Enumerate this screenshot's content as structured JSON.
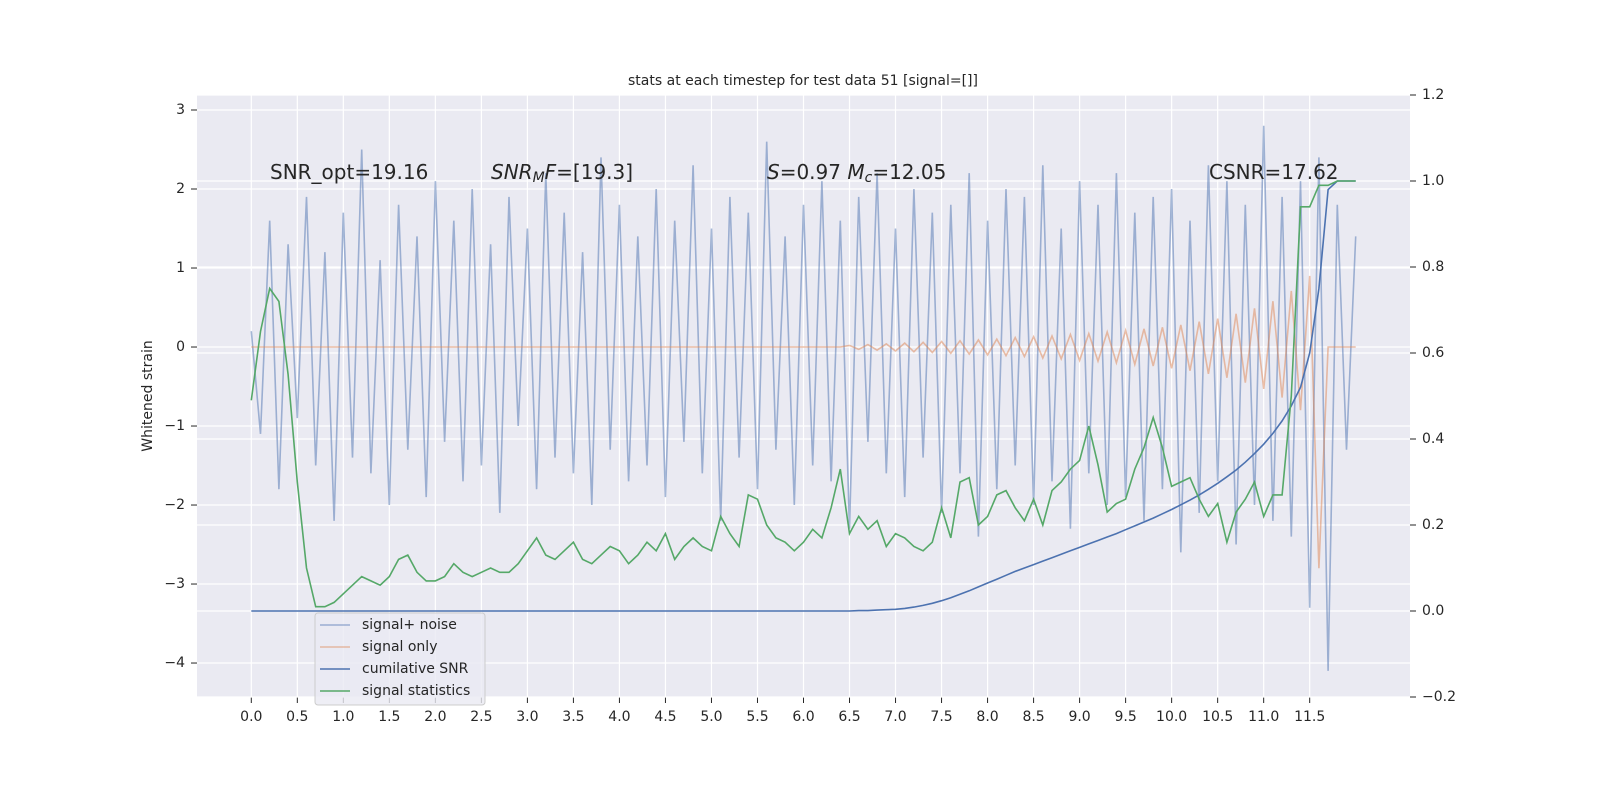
{
  "chart_data": {
    "type": "line",
    "title": "stats at each timestep for test data 51 [signal=[]]",
    "y_label": "Whitened strain",
    "annotations": [
      [
        "SNR_opt=19.16"
      ],
      [
        "SNR",
        "M",
        "F",
        "=[19.3]"
      ],
      [
        "S",
        "=0.97   ",
        "M",
        "c",
        "=12.05"
      ],
      [
        "CSNR=17.62"
      ]
    ],
    "xlim": [
      -0.59,
      12.59
    ],
    "xticks": [
      {
        "value": 0,
        "label": "0.0"
      },
      {
        "value": 0.5,
        "label": "0.5"
      },
      {
        "value": 1,
        "label": "1.0"
      },
      {
        "value": 1.5,
        "label": "1.5"
      },
      {
        "value": 2,
        "label": "2.0"
      },
      {
        "value": 2.5,
        "label": "2.5"
      },
      {
        "value": 3,
        "label": "3.0"
      },
      {
        "value": 3.5,
        "label": "3.5"
      },
      {
        "value": 4,
        "label": "4.0"
      },
      {
        "value": 4.5,
        "label": "4.5"
      },
      {
        "value": 5,
        "label": "5.0"
      },
      {
        "value": 5.5,
        "label": "5.5"
      },
      {
        "value": 6,
        "label": "6.0"
      },
      {
        "value": 6.5,
        "label": "6.5"
      },
      {
        "value": 7,
        "label": "7.0"
      },
      {
        "value": 7.5,
        "label": "7.5"
      },
      {
        "value": 8,
        "label": "8.0"
      },
      {
        "value": 8.5,
        "label": "8.5"
      },
      {
        "value": 9,
        "label": "9.0"
      },
      {
        "value": 9.5,
        "label": "9.5"
      },
      {
        "value": 10,
        "label": "10.0"
      },
      {
        "value": 10.5,
        "label": "10.5"
      },
      {
        "value": 11,
        "label": "11.0"
      },
      {
        "value": 11.5,
        "label": "11.5"
      }
    ],
    "ylim": [
      -4.43,
      3.19
    ],
    "yticks": [
      {
        "value": -4,
        "label": "−4"
      },
      {
        "value": -3,
        "label": "−3"
      },
      {
        "value": -2,
        "label": "−2"
      },
      {
        "value": -1,
        "label": "−1"
      },
      0,
      1,
      2,
      3
    ],
    "y2lim": [
      -0.2,
      1.2
    ],
    "y2ticks": [
      {
        "value": -0.2,
        "label": "−0.2"
      },
      {
        "value": 0,
        "label": "0.0"
      },
      0.2,
      0.4,
      0.6,
      0.8,
      {
        "value": 1,
        "label": "1.0"
      },
      1.2
    ],
    "grid": true,
    "legend": "lower left",
    "x": [
      0.0,
      0.1,
      0.2,
      0.3,
      0.4,
      0.5,
      0.6,
      0.7,
      0.8,
      0.9,
      1.0,
      1.1,
      1.2,
      1.3,
      1.4,
      1.5,
      1.6,
      1.7,
      1.8,
      1.9,
      2.0,
      2.1,
      2.2,
      2.3,
      2.4,
      2.5,
      2.6,
      2.7,
      2.8,
      2.9,
      3.0,
      3.1,
      3.2,
      3.3,
      3.4,
      3.5,
      3.6,
      3.7,
      3.8,
      3.9,
      4.0,
      4.1,
      4.2,
      4.3,
      4.4,
      4.5,
      4.6,
      4.7,
      4.8,
      4.9,
      5.0,
      5.1,
      5.2,
      5.3,
      5.4,
      5.5,
      5.6,
      5.7,
      5.8,
      5.9,
      6.0,
      6.1,
      6.2,
      6.3,
      6.4,
      6.5,
      6.6,
      6.7,
      6.8,
      6.9,
      7.0,
      7.1,
      7.2,
      7.3,
      7.4,
      7.5,
      7.6,
      7.7,
      7.8,
      7.9,
      8.0,
      8.1,
      8.2,
      8.3,
      8.4,
      8.5,
      8.6,
      8.7,
      8.8,
      8.9,
      9.0,
      9.1,
      9.2,
      9.3,
      9.4,
      9.5,
      9.6,
      9.7,
      9.8,
      9.9,
      10.0,
      10.1,
      10.2,
      10.3,
      10.4,
      10.5,
      10.6,
      10.7,
      10.8,
      10.9,
      11.0,
      11.1,
      11.2,
      11.3,
      11.4,
      11.5,
      11.6,
      11.7,
      11.8,
      11.9,
      12.0
    ],
    "series": [
      {
        "name": "signal+ noise",
        "color": "#4c72b0",
        "opacity": 0.5,
        "values": [
          0.2,
          -1.1,
          1.6,
          -1.8,
          1.3,
          -0.9,
          1.9,
          -1.5,
          1.2,
          -2.2,
          1.7,
          -1.4,
          2.5,
          -1.6,
          1.1,
          -2.0,
          1.8,
          -1.3,
          1.4,
          -1.9,
          2.1,
          -1.2,
          1.6,
          -1.7,
          2.0,
          -1.5,
          1.3,
          -2.1,
          1.9,
          -1.0,
          1.5,
          -1.8,
          2.2,
          -1.4,
          1.7,
          -1.6,
          1.2,
          -2.0,
          2.4,
          -1.3,
          1.8,
          -1.7,
          1.4,
          -1.5,
          2.0,
          -1.9,
          1.6,
          -1.2,
          2.3,
          -1.6,
          1.5,
          -2.2,
          1.9,
          -1.4,
          1.7,
          -1.8,
          2.6,
          -1.3,
          1.4,
          -2.0,
          1.8,
          -1.5,
          2.1,
          -1.7,
          1.6,
          -2.3,
          1.9,
          -1.2,
          2.2,
          -1.6,
          1.5,
          -1.9,
          2.0,
          -1.4,
          1.7,
          -2.1,
          1.8,
          -1.6,
          2.2,
          -2.4,
          1.6,
          -1.8,
          2.0,
          -1.5,
          1.9,
          -2.0,
          2.3,
          -1.7,
          1.5,
          -2.3,
          2.1,
          -1.6,
          1.8,
          -2.0,
          2.2,
          -1.9,
          1.7,
          -2.2,
          1.9,
          -1.8,
          2.0,
          -2.6,
          1.6,
          -2.1,
          2.3,
          -1.7,
          2.1,
          -2.5,
          1.8,
          -2.0,
          2.8,
          -2.2,
          1.9,
          -2.4,
          2.1,
          -3.3,
          2.4,
          -4.1,
          1.8,
          -1.3,
          1.4
        ]
      },
      {
        "name": "signal only",
        "color": "#dd8452",
        "opacity": 0.5,
        "values": [
          0,
          0,
          0,
          0,
          0,
          0,
          0,
          0,
          0,
          0,
          0,
          0,
          0,
          0,
          0,
          0,
          0,
          0,
          0,
          0,
          0,
          0,
          0,
          0,
          0,
          0,
          0,
          0,
          0,
          0,
          0,
          0,
          0,
          0,
          0,
          0,
          0,
          0,
          0,
          0,
          0,
          0,
          0,
          0,
          0,
          0,
          0,
          0,
          0,
          0,
          0,
          0,
          0,
          0,
          0,
          0,
          0,
          0,
          0,
          0,
          0,
          0,
          0,
          0,
          0,
          0.02,
          -0.03,
          0.03,
          -0.04,
          0.04,
          -0.05,
          0.05,
          -0.06,
          0.06,
          -0.07,
          0.07,
          -0.08,
          0.08,
          -0.09,
          0.09,
          -0.1,
          0.1,
          -0.11,
          0.12,
          -0.12,
          0.13,
          -0.14,
          0.14,
          -0.15,
          0.16,
          -0.17,
          0.17,
          -0.18,
          0.19,
          -0.2,
          0.21,
          -0.22,
          0.23,
          -0.24,
          0.25,
          -0.27,
          0.28,
          -0.3,
          0.32,
          -0.34,
          0.36,
          -0.39,
          0.42,
          -0.45,
          0.49,
          -0.53,
          0.58,
          -0.64,
          0.71,
          -0.8,
          0.9,
          -2.8,
          0,
          0,
          0,
          0
        ]
      },
      {
        "name": "cumilative SNR",
        "color": "#4c72b0",
        "axis": "y2",
        "values": [
          0,
          0,
          0,
          0,
          0,
          0,
          0,
          0,
          0,
          0,
          0,
          0,
          0,
          0,
          0,
          0,
          0,
          0,
          0,
          0,
          0,
          0,
          0,
          0,
          0,
          0,
          0,
          0,
          0,
          0,
          0,
          0,
          0,
          0,
          0,
          0,
          0,
          0,
          0,
          0,
          0,
          0,
          0,
          0,
          0,
          0,
          0,
          0,
          0,
          0,
          0,
          0,
          0,
          0,
          0,
          0,
          0,
          0,
          0,
          0,
          0,
          0,
          0,
          0,
          0,
          0,
          0.001,
          0.001,
          0.002,
          0.003,
          0.004,
          0.006,
          0.009,
          0.013,
          0.018,
          0.024,
          0.031,
          0.039,
          0.047,
          0.056,
          0.065,
          0.074,
          0.083,
          0.092,
          0.1,
          0.108,
          0.116,
          0.124,
          0.132,
          0.14,
          0.148,
          0.156,
          0.164,
          0.172,
          0.18,
          0.189,
          0.198,
          0.207,
          0.216,
          0.226,
          0.236,
          0.247,
          0.258,
          0.27,
          0.283,
          0.297,
          0.312,
          0.328,
          0.346,
          0.366,
          0.388,
          0.413,
          0.442,
          0.477,
          0.52,
          0.6,
          0.75,
          0.98,
          1.0,
          1.0,
          1.0
        ]
      },
      {
        "name": "signal statistics",
        "color": "#55a868",
        "axis": "y2",
        "values": [
          0.49,
          0.65,
          0.75,
          0.72,
          0.55,
          0.3,
          0.1,
          0.01,
          0.01,
          0.02,
          0.04,
          0.06,
          0.08,
          0.07,
          0.06,
          0.08,
          0.12,
          0.13,
          0.09,
          0.07,
          0.07,
          0.08,
          0.11,
          0.09,
          0.08,
          0.09,
          0.1,
          0.09,
          0.09,
          0.11,
          0.14,
          0.17,
          0.13,
          0.12,
          0.14,
          0.16,
          0.12,
          0.11,
          0.13,
          0.15,
          0.14,
          0.11,
          0.13,
          0.16,
          0.14,
          0.18,
          0.12,
          0.15,
          0.17,
          0.15,
          0.14,
          0.22,
          0.18,
          0.15,
          0.27,
          0.26,
          0.2,
          0.17,
          0.16,
          0.14,
          0.16,
          0.19,
          0.17,
          0.24,
          0.33,
          0.18,
          0.22,
          0.19,
          0.21,
          0.15,
          0.18,
          0.17,
          0.15,
          0.14,
          0.16,
          0.24,
          0.17,
          0.3,
          0.31,
          0.2,
          0.22,
          0.27,
          0.28,
          0.24,
          0.21,
          0.26,
          0.2,
          0.28,
          0.3,
          0.33,
          0.35,
          0.43,
          0.34,
          0.23,
          0.25,
          0.26,
          0.33,
          0.38,
          0.45,
          0.38,
          0.29,
          0.3,
          0.31,
          0.26,
          0.22,
          0.25,
          0.16,
          0.23,
          0.26,
          0.3,
          0.22,
          0.27,
          0.27,
          0.5,
          0.94,
          0.94,
          0.99,
          0.99,
          1.0,
          1.0,
          1.0
        ]
      }
    ]
  }
}
